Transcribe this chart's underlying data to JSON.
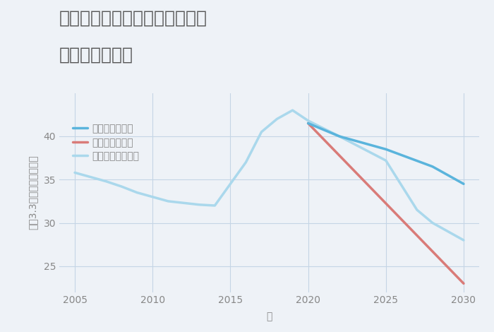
{
  "title_line1": "福岡県粕屋郡志免町東公園台の",
  "title_line2": "土地の価格推移",
  "xlabel": "年",
  "ylabel": "坪（3.3㎡）単価（万円）",
  "background_color": "#eef2f7",
  "plot_background": "#eef2f7",
  "ylim": [
    22,
    45
  ],
  "xlim": [
    2004,
    2031
  ],
  "yticks": [
    25,
    30,
    35,
    40
  ],
  "xticks": [
    2005,
    2010,
    2015,
    2020,
    2025,
    2030
  ],
  "good_scenario": {
    "label": "グッドシナリオ",
    "color": "#5ab4dc",
    "x": [
      2020,
      2022,
      2025,
      2028,
      2030
    ],
    "y": [
      41.5,
      40.0,
      38.5,
      36.5,
      34.5
    ]
  },
  "bad_scenario": {
    "label": "バッドシナリオ",
    "color": "#d97b78",
    "x": [
      2020,
      2030
    ],
    "y": [
      41.5,
      23.0
    ]
  },
  "normal_scenario": {
    "label": "ノーマルシナリオ",
    "color": "#aad8ec",
    "x": [
      2005,
      2006,
      2007,
      2008,
      2009,
      2010,
      2011,
      2012,
      2013,
      2014,
      2015,
      2016,
      2017,
      2018,
      2019,
      2020,
      2022,
      2025,
      2027,
      2028,
      2030
    ],
    "y": [
      35.8,
      35.3,
      34.8,
      34.2,
      33.5,
      33.0,
      32.5,
      32.3,
      32.1,
      32.0,
      34.5,
      37.0,
      40.5,
      42.0,
      43.0,
      41.8,
      40.0,
      37.2,
      31.5,
      30.0,
      28.0
    ]
  },
  "grid_color": "#c5d5e5",
  "title_color": "#555555",
  "label_color": "#888888",
  "tick_color": "#888888",
  "legend_fontsize": 10,
  "title_fontsize": 18,
  "axis_label_fontsize": 10,
  "tick_fontsize": 10,
  "line_width": 2.5
}
